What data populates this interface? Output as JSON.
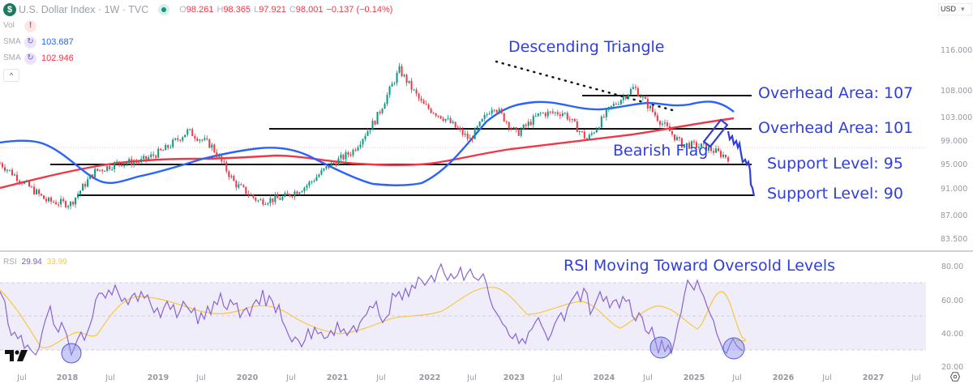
{
  "header": {
    "symbol_badge": "$",
    "title": "U.S. Dollar Index · 1W · TVC",
    "ohlc": {
      "open_label": "O",
      "open": "98.261",
      "high_label": "H",
      "high": "98.365",
      "low_label": "L",
      "low": "97.921",
      "close_label": "C",
      "close": "98.001",
      "change": "−0.137 (−0.14%)"
    },
    "currency": "USD",
    "currency_caret": "▾"
  },
  "indicators": [
    {
      "label": "Vol",
      "icon": "!",
      "value": ""
    },
    {
      "label": "SMA",
      "icon": "↻",
      "value": "103.687",
      "color": "#2962ff"
    },
    {
      "label": "SMA",
      "icon": "↻",
      "value": "102.946",
      "color": "#f23645"
    }
  ],
  "collapse_glyph": "^",
  "rsi_legend": {
    "label": "RSI",
    "value": "29.94",
    "ma_value": "33.99"
  },
  "colors": {
    "up": "#089981",
    "down": "#f23645",
    "sma_short": "#2962ff",
    "sma_long": "#f23645",
    "annotation": "#2f3ee0",
    "rsi": "#7e57c2",
    "rsi_ma": "#f7c948",
    "rsi_band": "#f0eefb"
  },
  "chart_data": [
    {
      "type": "line",
      "title": "U.S. Dollar Index · 1W · TVC (weekly candlesticks)",
      "xlabel": "",
      "ylabel": "USD",
      "ylim": [
        83.5,
        118
      ],
      "y_ticks": [
        "116.000",
        "108.000",
        "103.000",
        "99.000",
        "95.000",
        "91.000",
        "87.000",
        "83.500"
      ],
      "x_ticks": [
        "Jul",
        "2018",
        "Jul",
        "2019",
        "Jul",
        "2020",
        "Jul",
        "2021",
        "Jul",
        "2022",
        "Jul",
        "2023",
        "Jul",
        "2024",
        "Jul",
        "2025",
        "Jul",
        "2026",
        "Jul",
        "2027",
        "Jul"
      ],
      "x": [
        "2017-06",
        "2017-10",
        "2018-01",
        "2018-04",
        "2018-08",
        "2019-01",
        "2019-06",
        "2019-10",
        "2020-03",
        "2020-05",
        "2020-08",
        "2021-01",
        "2021-05",
        "2021-07",
        "2021-11",
        "2022-03",
        "2022-06",
        "2022-09",
        "2022-11",
        "2023-02",
        "2023-07",
        "2023-10",
        "2024-01",
        "2024-04",
        "2024-06",
        "2024-09",
        "2024-11",
        "2025-01",
        "2025-03",
        "2025-04",
        "2025-05",
        "2025-06"
      ],
      "series": [
        {
          "name": "Close (approx.)",
          "values": [
            96.5,
            93.2,
            90.0,
            89.5,
            95.0,
            96.5,
            96.8,
            98.8,
            102.0,
            99.5,
            93.0,
            90.0,
            90.5,
            92.5,
            96.0,
            98.5,
            104.0,
            112.5,
            106.5,
            104.0,
            100.5,
            106.5,
            101.5,
            105.0,
            105.2,
            100.5,
            106.0,
            109.5,
            104.2,
            99.8,
            99.3,
            97.5
          ]
        },
        {
          "name": "SMA (short)",
          "last_value": 103.687
        },
        {
          "name": "SMA (long)",
          "last_value": 102.946
        }
      ],
      "annotations": [
        {
          "text": "Descending Triangle",
          "type": "dotted trendline from 2022-09 high toward 2025-01"
        },
        {
          "text": "Overhead Area: 107",
          "level": 107
        },
        {
          "text": "Overhead Area: 101",
          "level": 101
        },
        {
          "text": "Bearish Flag",
          "type": "rectangle around early-2025 consolidation"
        },
        {
          "text": "Support Level: 95",
          "level": 95
        },
        {
          "text": "Support Level: 90",
          "level": 90
        }
      ],
      "last_price": 98.001
    },
    {
      "type": "line",
      "title": "RSI",
      "ylim": [
        20,
        80
      ],
      "y_ticks": [
        "80.00",
        "60.00",
        "40.00",
        "20.00"
      ],
      "bands": {
        "upper": 70,
        "middle": 50,
        "lower": 30
      },
      "series": [
        {
          "name": "RSI",
          "last_value": 29.94
        },
        {
          "name": "RSI MA",
          "last_value": 33.99
        }
      ],
      "annotations": [
        {
          "text": "RSI Moving Toward Oversold Levels"
        },
        {
          "type": "circle",
          "x": "2018-01",
          "note": "oversold touch"
        },
        {
          "type": "circle",
          "x": "2024-09",
          "note": "oversold touch"
        },
        {
          "type": "circle",
          "x": "2025-06",
          "note": "oversold touch"
        }
      ]
    }
  ],
  "labels": {
    "descending_triangle": "Descending Triangle",
    "overhead_107": "Overhead Area: 107",
    "overhead_101": "Overhead Area: 101",
    "bearish_flag": "Bearish Flag",
    "support_95": "Support Level: 95",
    "support_90": "Support Level: 90",
    "rsi_note": "RSI Moving Toward Oversold Levels"
  },
  "price_axis": [
    "116.000",
    "108.000",
    "103.000",
    "99.000",
    "95.000",
    "91.000",
    "87.000",
    "83.500"
  ],
  "rsi_axis": [
    "80.00",
    "60.00",
    "40.00",
    "20.00"
  ],
  "time_axis": [
    "Jul",
    "2018",
    "Jul",
    "2019",
    "Jul",
    "2020",
    "Jul",
    "2021",
    "Jul",
    "2022",
    "Jul",
    "2023",
    "Jul",
    "2024",
    "Jul",
    "2025",
    "Jul",
    "2026",
    "Jul",
    "2027",
    "Jul"
  ]
}
